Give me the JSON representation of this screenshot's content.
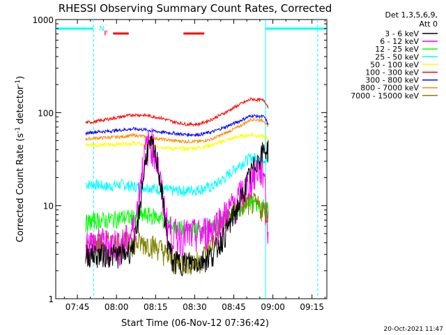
{
  "chart_data": {
    "type": "line",
    "title": "RHESSI Observing Summary Count Rates, Corrected",
    "xlabel": "Start Time (06-Nov-12 07:36:42)",
    "ylabel": "Corrected Count Rate (s⁻¹ detector⁻¹)",
    "ylabel_main": "Corrected Count Rate (s",
    "ylabel_sup1": "-1",
    "ylabel_mid": " detector",
    "ylabel_sup2": "-1",
    "ylabel_end": ")",
    "yscale": "log",
    "ylim": [
      1,
      1000
    ],
    "xlim_minutes": [
      0,
      104
    ],
    "x_ticks": [
      {
        "label": "07:45",
        "t": 8.3
      },
      {
        "label": "08:00",
        "t": 23.3
      },
      {
        "label": "08:15",
        "t": 38.3
      },
      {
        "label": "08:30",
        "t": 53.3
      },
      {
        "label": "08:45",
        "t": 68.3
      },
      {
        "label": "09:00",
        "t": 83.3
      },
      {
        "label": "09:15",
        "t": 98.3
      }
    ],
    "y_ticks": [
      {
        "label": "1",
        "v": 1
      },
      {
        "label": "10",
        "v": 10
      },
      {
        "label": "100",
        "v": 100
      },
      {
        "label": "1000",
        "v": 1000
      }
    ],
    "legend_header": [
      "Det 1,3,5,6,9,",
      "Att 0"
    ],
    "data_start_minute": 11.5,
    "data_end_minute": 81.5,
    "series": [
      {
        "name": "3 - 6 keV",
        "color": "#000000",
        "x": [
          11.5,
          14,
          20,
          26,
          29,
          31,
          33,
          35,
          37,
          39,
          41,
          43,
          45,
          50,
          55,
          60,
          65,
          70,
          74,
          77,
          80,
          81.5
        ],
        "y": [
          3,
          3,
          3,
          3,
          3.5,
          5,
          15,
          40,
          45,
          30,
          12,
          4,
          2.5,
          2.5,
          2.5,
          3,
          5,
          10,
          20,
          30,
          40,
          40
        ]
      },
      {
        "name": "6 - 12 keV",
        "color": "#ff00ff",
        "x": [
          11.5,
          14,
          20,
          26,
          29,
          31,
          33,
          35,
          37,
          39,
          41,
          43,
          45,
          50,
          55,
          60,
          65,
          70,
          74,
          77,
          80,
          81.5
        ],
        "y": [
          4,
          4,
          4,
          4,
          5,
          8,
          25,
          45,
          48,
          30,
          12,
          6,
          5,
          5,
          5,
          6,
          8,
          12,
          18,
          25,
          25,
          4
        ]
      },
      {
        "name": "12 - 25 keV",
        "color": "#00ff00",
        "x": [
          11.5,
          15,
          20,
          25,
          30,
          35,
          40,
          45,
          50,
          55,
          60,
          65,
          70,
          75,
          80,
          81.5
        ],
        "y": [
          6.5,
          7,
          7,
          7.5,
          7.5,
          8,
          7.5,
          6,
          5.5,
          5.5,
          6,
          7,
          9,
          11,
          10,
          9
        ]
      },
      {
        "name": "25 - 50 keV",
        "color": "#00ffff",
        "x": [
          11.5,
          15,
          20,
          25,
          30,
          35,
          40,
          45,
          50,
          55,
          60,
          65,
          70,
          75,
          80,
          81.5
        ],
        "y": [
          17,
          17,
          16,
          17,
          16,
          16,
          15,
          14.5,
          14.5,
          15,
          16,
          20,
          27,
          33,
          32,
          30
        ]
      },
      {
        "name": "50 - 100 keV",
        "color": "#ffff00",
        "x": [
          11.5,
          15,
          20,
          25,
          30,
          35,
          40,
          45,
          50,
          55,
          60,
          65,
          70,
          75,
          80,
          81.5
        ],
        "y": [
          45,
          45,
          45,
          46,
          47,
          45,
          43,
          41,
          41,
          42,
          45,
          50,
          55,
          58,
          55,
          52
        ]
      },
      {
        "name": "100 - 300 keV",
        "color": "#ff0000",
        "x": [
          11.5,
          15,
          20,
          25,
          30,
          35,
          40,
          45,
          50,
          55,
          60,
          65,
          70,
          75,
          80,
          81.5
        ],
        "y": [
          78,
          80,
          85,
          90,
          95,
          93,
          88,
          80,
          75,
          75,
          85,
          100,
          120,
          140,
          135,
          115
        ]
      },
      {
        "name": "300 - 800 keV",
        "color": "#0000ff",
        "x": [
          11.5,
          15,
          20,
          25,
          30,
          35,
          40,
          45,
          50,
          55,
          60,
          65,
          70,
          75,
          80,
          81.5
        ],
        "y": [
          60,
          62,
          63,
          65,
          67,
          65,
          62,
          60,
          58,
          58,
          62,
          70,
          80,
          93,
          90,
          75
        ]
      },
      {
        "name": "800 - 7000 keV",
        "color": "#ff8c00",
        "x": [
          11.5,
          15,
          20,
          25,
          30,
          35,
          40,
          45,
          50,
          55,
          60,
          65,
          70,
          75,
          80,
          81.5
        ],
        "y": [
          52,
          53,
          54,
          55,
          57,
          55,
          52,
          50,
          49,
          49,
          52,
          60,
          70,
          85,
          82,
          68
        ]
      },
      {
        "name": "7000 - 15000 keV",
        "color": "#808000",
        "x": [
          11.5,
          14,
          20,
          25,
          30,
          35,
          40,
          45,
          50,
          55,
          60,
          65,
          70,
          75,
          80,
          81.5
        ],
        "y": [
          3.5,
          4,
          4,
          4,
          4,
          4,
          3.5,
          2.5,
          2.5,
          2.5,
          4,
          7,
          10,
          11,
          9,
          8
        ]
      }
    ],
    "annotations": {
      "N_label": "N",
      "F_label": "F",
      "night_bars": [
        {
          "t0": 0,
          "t1": 14.5
        },
        {
          "t0": 80.5,
          "t1": 104
        }
      ],
      "saa_bars": [
        {
          "t0": 22,
          "t1": 28
        },
        {
          "t0": 49,
          "t1": 57
        }
      ],
      "night_start_minute": 14.5,
      "night_end_minute": 80.5,
      "dashed_minute": 100.5
    },
    "timestamp": "20-Oct-2021 11:47"
  },
  "colors": {
    "axis": "#000000",
    "night": "#00ffff",
    "flare": "#ff0000"
  }
}
